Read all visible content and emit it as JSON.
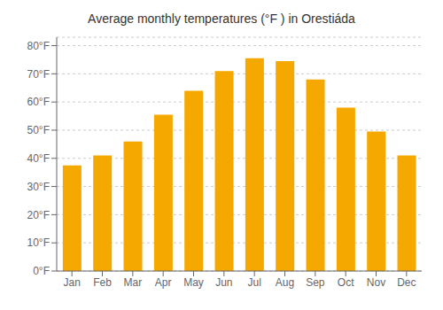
{
  "chart_data": {
    "type": "bar",
    "title": "Average monthly temperatures (°F ) in Orestiáda",
    "categories": [
      "Jan",
      "Feb",
      "Mar",
      "Apr",
      "May",
      "Jun",
      "Jul",
      "Aug",
      "Sep",
      "Oct",
      "Nov",
      "Dec"
    ],
    "values": [
      37.5,
      41.0,
      46.0,
      55.5,
      64.0,
      71.0,
      75.5,
      74.5,
      68.0,
      58.0,
      49.5,
      41.0
    ],
    "color": "#F5A800",
    "ylim": [
      0,
      83
    ],
    "yticks": [
      {
        "value": 0,
        "label": "0°F"
      },
      {
        "value": 10,
        "label": "10°F"
      },
      {
        "value": 20,
        "label": "20°F"
      },
      {
        "value": 30,
        "label": "30°F"
      },
      {
        "value": 40,
        "label": "40°F"
      },
      {
        "value": 50,
        "label": "50°F"
      },
      {
        "value": 60,
        "label": "60°F"
      },
      {
        "value": 70,
        "label": "70°F"
      },
      {
        "value": 80,
        "label": "80°F"
      }
    ],
    "grid": true
  }
}
